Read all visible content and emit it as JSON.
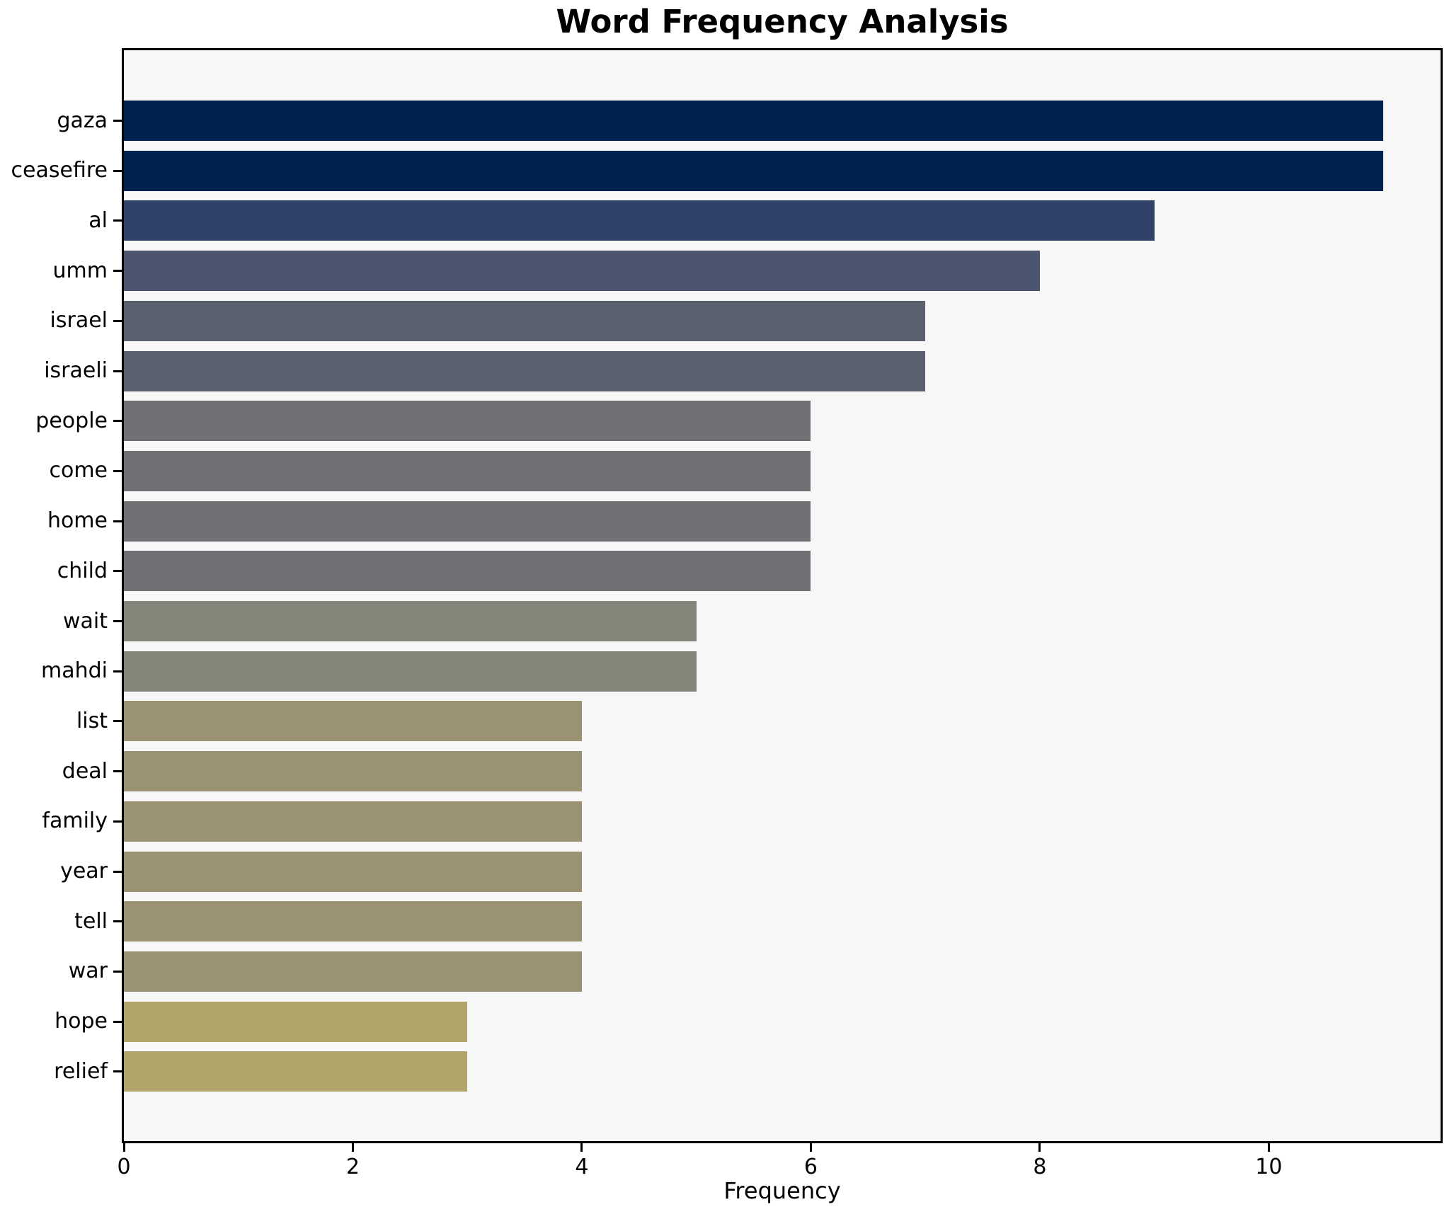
{
  "chart_data": {
    "type": "bar",
    "orientation": "horizontal",
    "title": "Word Frequency Analysis",
    "xlabel": "Frequency",
    "ylabel": "",
    "categories": [
      "gaza",
      "ceasefire",
      "al",
      "umm",
      "israel",
      "israeli",
      "people",
      "come",
      "home",
      "child",
      "wait",
      "mahdi",
      "list",
      "deal",
      "family",
      "year",
      "tell",
      "war",
      "hope",
      "relief"
    ],
    "values": [
      11,
      11,
      9,
      8,
      7,
      7,
      6,
      6,
      6,
      6,
      5,
      5,
      4,
      4,
      4,
      4,
      4,
      4,
      3,
      3
    ],
    "bar_colors": [
      "#00224e",
      "#00224e",
      "#30416a",
      "#4b556f",
      "#5b606e",
      "#5b606e",
      "#707174",
      "#707174",
      "#707174",
      "#707174",
      "#86857a",
      "#86857a",
      "#9b9271",
      "#9b9271",
      "#9b9271",
      "#9b9271",
      "#9b9271",
      "#9b9271",
      "#b1a56c",
      "#b1a56c"
    ],
    "xticks": [
      0,
      2,
      4,
      6,
      8,
      10
    ],
    "xlim": [
      0,
      11.5
    ],
    "grid": false,
    "legend": "none",
    "plot_background": "#f7f7f8",
    "axis_color": "#000000",
    "text_color": "#000000"
  }
}
